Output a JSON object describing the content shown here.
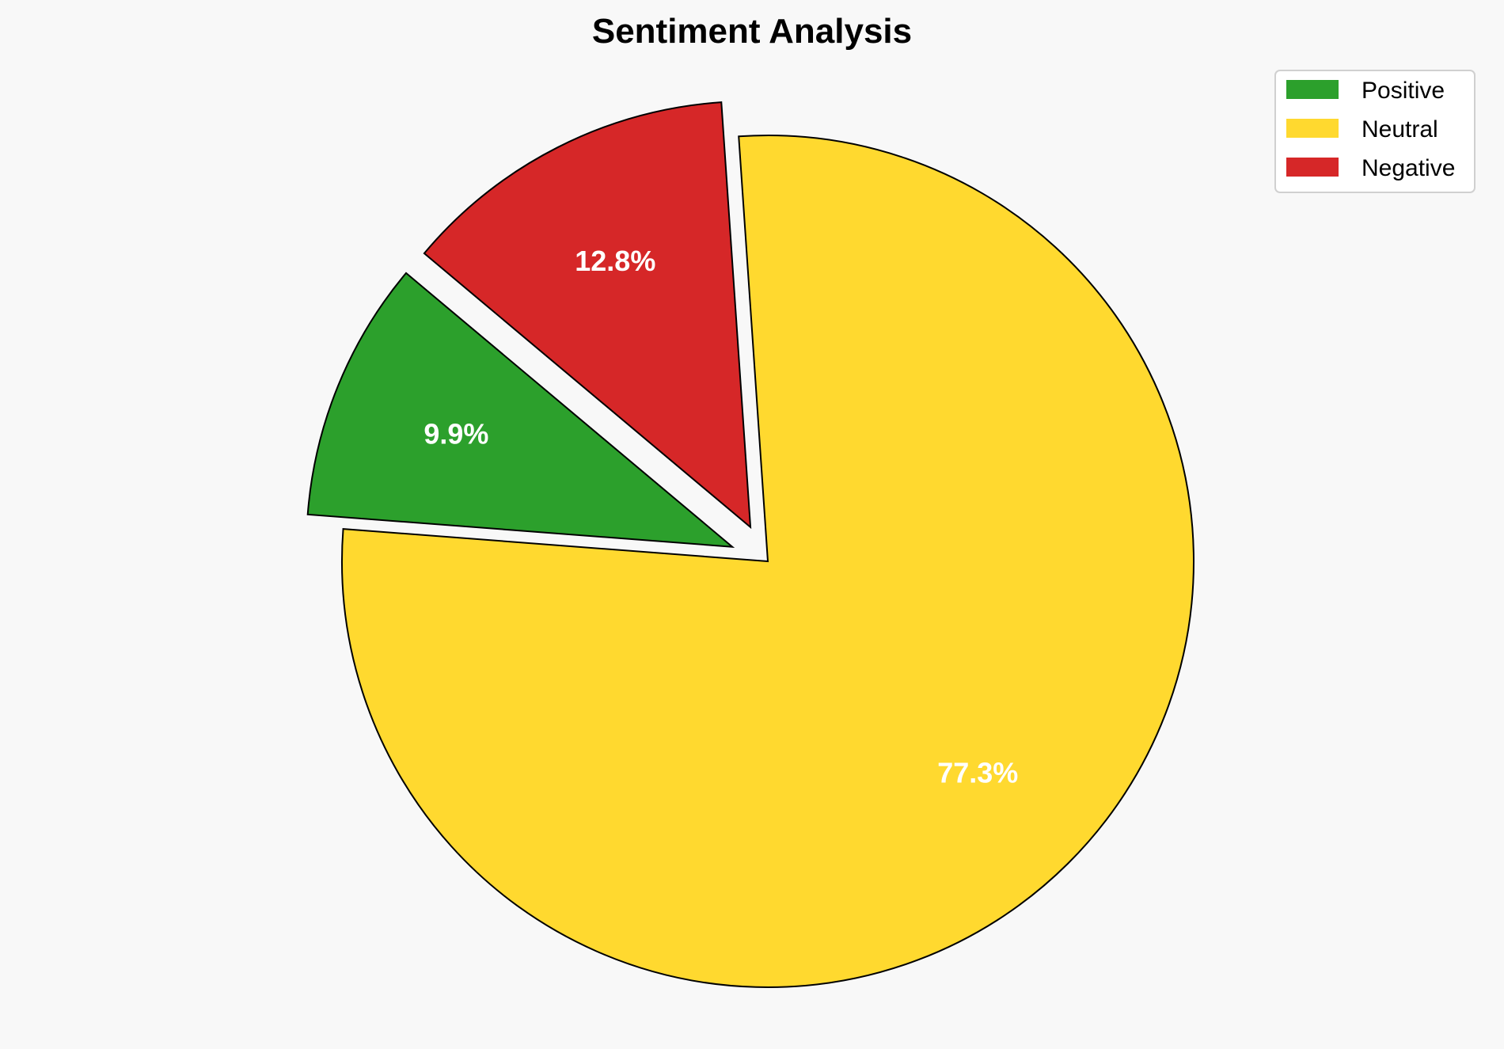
{
  "chart_data": {
    "type": "pie",
    "title": "Sentiment Analysis",
    "categories": [
      "Positive",
      "Neutral",
      "Negative"
    ],
    "values": [
      9.9,
      77.3,
      12.8
    ],
    "labels": [
      "9.9%",
      "77.3%",
      "12.8%"
    ],
    "colors": [
      "#2ca02c",
      "#ffd92f",
      "#d62728"
    ],
    "explode": [
      0.09,
      0,
      0.09
    ],
    "startangle": 140,
    "direction": "counterclockwise",
    "legend": {
      "placement": "top-right",
      "entries": [
        "Positive",
        "Neutral",
        "Negative"
      ]
    }
  }
}
